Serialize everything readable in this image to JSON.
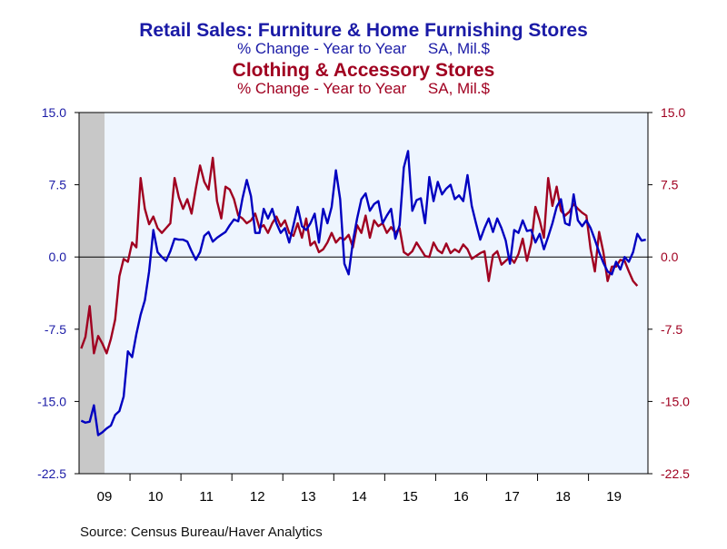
{
  "chart_data": {
    "type": "line",
    "title": "Retail Sales: Furniture & Home Furnishing Stores",
    "subtitle": "% Change - Year to Year     SA, Mil.$",
    "title2": "Clothing & Accessory Stores",
    "subtitle2": "% Change - Year to Year     SA, Mil.$",
    "source": "Source:  Census Bureau/Haver Analytics",
    "ylim": [
      -22.5,
      15.0
    ],
    "y_ticks": [
      "15.0",
      "7.5",
      "0.0",
      "-7.5",
      "-15.0",
      "-22.5"
    ],
    "y_tick_values": [
      15.0,
      7.5,
      0.0,
      -7.5,
      -15.0,
      -22.5
    ],
    "x_ticks": [
      "09",
      "10",
      "11",
      "12",
      "13",
      "14",
      "15",
      "16",
      "17",
      "18",
      "19"
    ],
    "x_start": "2009-01",
    "recession_band": {
      "from": "2009-01",
      "to": "2009-06"
    },
    "grid": false,
    "colors": {
      "series1": "#0000c0",
      "series2": "#a00020",
      "band": "#c8c8c8",
      "plot_bg": "#eef5fe",
      "title1": "#1a1aa6",
      "title2": "#a00020"
    },
    "series": [
      {
        "name": "Retail Sales: Furniture & Home Furnishing Stores",
        "values": [
          -17.0,
          -17.2,
          -17.1,
          -15.4,
          -18.5,
          -18.2,
          -17.8,
          -17.5,
          -16.4,
          -16.0,
          -14.5,
          -9.8,
          -10.4,
          -8.0,
          -6.0,
          -4.5,
          -1.5,
          2.8,
          0.5,
          0.0,
          -0.4,
          0.6,
          1.9,
          1.8,
          1.8,
          1.6,
          0.6,
          -0.3,
          0.5,
          2.2,
          2.6,
          1.6,
          2.0,
          2.3,
          2.6,
          3.3,
          3.9,
          3.7,
          6.1,
          8.0,
          6.3,
          2.5,
          2.5,
          5.0,
          4.0,
          5.0,
          3.5,
          2.5,
          3.0,
          1.5,
          3.3,
          5.2,
          3.2,
          2.8,
          3.5,
          4.5,
          1.5,
          5.0,
          3.5,
          5.2,
          9.0,
          6.0,
          -0.7,
          -1.8,
          1.6,
          4.0,
          6.0,
          6.6,
          4.8,
          5.5,
          5.8,
          3.5,
          4.3,
          5.0,
          1.9,
          3.3,
          9.3,
          11.0,
          4.8,
          5.9,
          6.1,
          3.5,
          8.3,
          5.8,
          7.8,
          6.5,
          7.1,
          7.5,
          6.0,
          6.4,
          5.8,
          8.5,
          5.3,
          3.5,
          1.8,
          3.0,
          4.0,
          2.6,
          4.0,
          3.0,
          1.7,
          -0.7,
          2.8,
          2.5,
          3.8,
          2.7,
          2.8,
          1.5,
          2.4,
          0.8,
          2.1,
          3.5,
          5.2,
          6.0,
          3.5,
          3.3,
          6.5,
          3.8,
          3.2,
          3.8,
          3.0,
          1.8,
          0.5,
          -0.6,
          -1.5,
          -1.8,
          -0.5,
          -1.3,
          0.0,
          -0.5,
          0.5,
          2.4,
          1.7,
          1.8
        ]
      },
      {
        "name": "Clothing & Accessory Stores",
        "values": [
          -9.5,
          -8.3,
          -5.1,
          -10.0,
          -8.2,
          -9.0,
          -10.0,
          -8.5,
          -6.5,
          -2.0,
          -0.2,
          -0.5,
          1.5,
          1.0,
          8.2,
          5.0,
          3.4,
          4.2,
          3.0,
          2.5,
          3.0,
          3.5,
          8.2,
          6.2,
          5.0,
          6.0,
          4.5,
          7.1,
          9.5,
          7.8,
          7.0,
          10.3,
          5.8,
          4.0,
          7.3,
          7.0,
          6.0,
          4.3,
          4.0,
          3.5,
          3.8,
          4.5,
          3.0,
          3.3,
          2.5,
          3.5,
          4.2,
          3.2,
          3.8,
          2.5,
          2.2,
          3.5,
          2.0,
          4.0,
          1.2,
          1.6,
          0.5,
          0.8,
          1.5,
          2.5,
          1.5,
          2.0,
          1.8,
          2.3,
          1.0,
          3.3,
          2.5,
          4.3,
          2.0,
          3.8,
          3.2,
          3.5,
          2.5,
          3.1,
          2.5,
          3.0,
          0.5,
          0.2,
          0.6,
          1.5,
          0.8,
          0.1,
          0.0,
          1.5,
          0.7,
          0.4,
          1.4,
          0.4,
          0.8,
          0.5,
          1.3,
          0.8,
          -0.2,
          0.1,
          0.4,
          0.6,
          -2.5,
          0.2,
          0.6,
          -0.8,
          -0.4,
          0.0,
          -0.6,
          0.3,
          1.9,
          -0.4,
          1.4,
          5.2,
          3.8,
          2.0,
          8.2,
          5.3,
          7.3,
          4.8,
          4.3,
          4.7,
          5.5,
          5.0,
          4.6,
          4.3,
          0.8,
          -1.5,
          2.6,
          0.5,
          -2.5,
          -1.0,
          -1.0,
          -0.3,
          -0.4,
          -1.5,
          -2.5,
          -3.0
        ]
      }
    ]
  }
}
